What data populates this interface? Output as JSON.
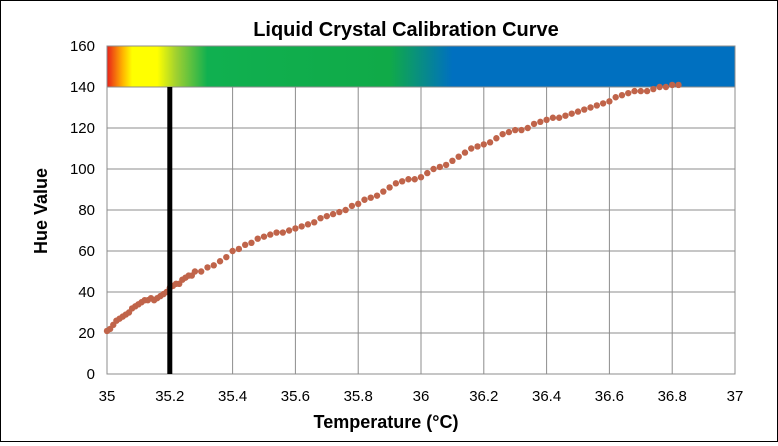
{
  "chart_data": {
    "type": "scatter",
    "title": "Liquid Crystal Calibration Curve",
    "xlabel": "Temperature (°C)",
    "ylabel": "Hue  Value",
    "xlim": [
      35,
      37
    ],
    "ylim": [
      0,
      160
    ],
    "x_ticks": [
      "35",
      "35.2",
      "35.4",
      "35.6",
      "35.8",
      "36",
      "36.2",
      "36.4",
      "36.6",
      "36.8",
      "37"
    ],
    "y_ticks": [
      "0",
      "20",
      "40",
      "60",
      "80",
      "100",
      "120",
      "140",
      "160"
    ],
    "grid": true,
    "marker_color": "#c0644a",
    "reference_line": {
      "x": 35.2,
      "color": "#000000"
    },
    "color_band": {
      "y_range": [
        140,
        160
      ],
      "stops": [
        {
          "x": 35.0,
          "color": "#e8201a"
        },
        {
          "x": 35.05,
          "color": "#ffb400"
        },
        {
          "x": 35.08,
          "color": "#ffff00"
        },
        {
          "x": 35.16,
          "color": "#ffff00"
        },
        {
          "x": 35.22,
          "color": "#a0d030"
        },
        {
          "x": 35.32,
          "color": "#10b050"
        },
        {
          "x": 35.9,
          "color": "#10aa48"
        },
        {
          "x": 36.1,
          "color": "#0070c0"
        },
        {
          "x": 37.0,
          "color": "#0070c0"
        }
      ]
    },
    "series": [
      {
        "values": [
          [
            35.0,
            21
          ],
          [
            35.01,
            22
          ],
          [
            35.02,
            24
          ],
          [
            35.03,
            26
          ],
          [
            35.04,
            27
          ],
          [
            35.05,
            28
          ],
          [
            35.06,
            29
          ],
          [
            35.07,
            30
          ],
          [
            35.08,
            32
          ],
          [
            35.09,
            33
          ],
          [
            35.1,
            34
          ],
          [
            35.11,
            35
          ],
          [
            35.12,
            36
          ],
          [
            35.13,
            36
          ],
          [
            35.14,
            37
          ],
          [
            35.15,
            36
          ],
          [
            35.16,
            37
          ],
          [
            35.17,
            38
          ],
          [
            35.18,
            39
          ],
          [
            35.19,
            40
          ],
          [
            35.2,
            42
          ],
          [
            35.21,
            43
          ],
          [
            35.22,
            44
          ],
          [
            35.23,
            44
          ],
          [
            35.24,
            46
          ],
          [
            35.25,
            47
          ],
          [
            35.26,
            48
          ],
          [
            35.27,
            48
          ],
          [
            35.28,
            50
          ],
          [
            35.3,
            50
          ],
          [
            35.32,
            52
          ],
          [
            35.34,
            53
          ],
          [
            35.36,
            55
          ],
          [
            35.38,
            57
          ],
          [
            35.4,
            60
          ],
          [
            35.42,
            61
          ],
          [
            35.44,
            63
          ],
          [
            35.46,
            64
          ],
          [
            35.48,
            66
          ],
          [
            35.5,
            67
          ],
          [
            35.52,
            68
          ],
          [
            35.54,
            69
          ],
          [
            35.56,
            69
          ],
          [
            35.58,
            70
          ],
          [
            35.6,
            71
          ],
          [
            35.62,
            72
          ],
          [
            35.64,
            73
          ],
          [
            35.66,
            74
          ],
          [
            35.68,
            76
          ],
          [
            35.7,
            77
          ],
          [
            35.72,
            78
          ],
          [
            35.74,
            79
          ],
          [
            35.76,
            80
          ],
          [
            35.78,
            82
          ],
          [
            35.8,
            83
          ],
          [
            35.82,
            85
          ],
          [
            35.84,
            86
          ],
          [
            35.86,
            87
          ],
          [
            35.88,
            89
          ],
          [
            35.9,
            91
          ],
          [
            35.92,
            93
          ],
          [
            35.94,
            94
          ],
          [
            35.96,
            95
          ],
          [
            35.98,
            95
          ],
          [
            36.0,
            96
          ],
          [
            36.02,
            98
          ],
          [
            36.04,
            100
          ],
          [
            36.06,
            101
          ],
          [
            36.08,
            102
          ],
          [
            36.1,
            104
          ],
          [
            36.12,
            106
          ],
          [
            36.14,
            108
          ],
          [
            36.16,
            110
          ],
          [
            36.18,
            111
          ],
          [
            36.2,
            112
          ],
          [
            36.22,
            113
          ],
          [
            36.24,
            115
          ],
          [
            36.26,
            117
          ],
          [
            36.28,
            118
          ],
          [
            36.3,
            119
          ],
          [
            36.32,
            119
          ],
          [
            36.34,
            120
          ],
          [
            36.36,
            122
          ],
          [
            36.38,
            123
          ],
          [
            36.4,
            124
          ],
          [
            36.42,
            125
          ],
          [
            36.44,
            125
          ],
          [
            36.46,
            126
          ],
          [
            36.48,
            127
          ],
          [
            36.5,
            128
          ],
          [
            36.52,
            129
          ],
          [
            36.54,
            130
          ],
          [
            36.56,
            131
          ],
          [
            36.58,
            132
          ],
          [
            36.6,
            133
          ],
          [
            36.62,
            135
          ],
          [
            36.64,
            136
          ],
          [
            36.66,
            137
          ],
          [
            36.68,
            138
          ],
          [
            36.7,
            138
          ],
          [
            36.72,
            138
          ],
          [
            36.74,
            139
          ],
          [
            36.76,
            140
          ],
          [
            36.78,
            140
          ],
          [
            36.8,
            141
          ],
          [
            36.82,
            141
          ]
        ]
      }
    ]
  }
}
